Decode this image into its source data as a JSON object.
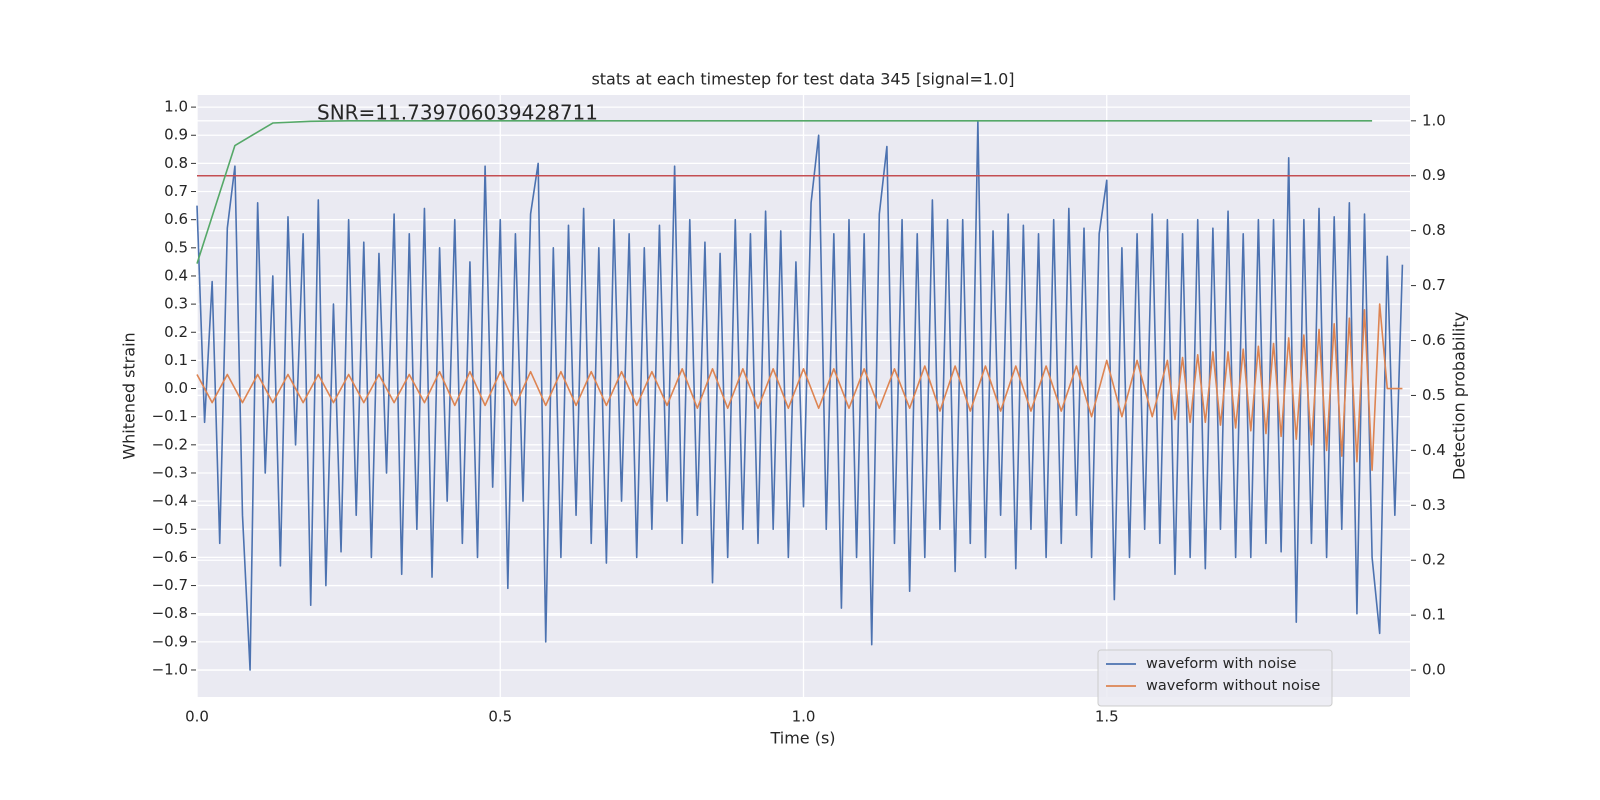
{
  "chart_data": {
    "type": "line",
    "title": "stats at each timestep for test data 345 [signal=1.0]",
    "xlabel": "Time (s)",
    "ylabel": "Whitened strain",
    "y2label": "Detection probability",
    "annotation": "SNR=11.739706039428711",
    "grid": true,
    "background": "#eaeaf2",
    "legend": "lower right",
    "xlim": [
      0,
      2.0
    ],
    "xticks": [
      {
        "value": 0,
        "label": "0.0"
      },
      0.5,
      {
        "value": 1,
        "label": "1.0"
      },
      1.5
    ],
    "ylim": [
      -1.096,
      1.043
    ],
    "yticks": [
      {
        "value": 1,
        "label": "1.0"
      },
      0.9,
      0.8,
      0.7,
      0.6,
      0.5,
      0.4,
      0.3,
      0.2,
      0.1,
      {
        "value": 0,
        "label": "0.0"
      },
      {
        "value": -0.1,
        "label": "−0.1"
      },
      {
        "value": -0.2,
        "label": "−0.2"
      },
      {
        "value": -0.3,
        "label": "−0.3"
      },
      {
        "value": -0.4,
        "label": "−0.4"
      },
      {
        "value": -0.5,
        "label": "−0.5"
      },
      {
        "value": -0.6,
        "label": "−0.6"
      },
      {
        "value": -0.7,
        "label": "−0.7"
      },
      {
        "value": -0.8,
        "label": "−0.8"
      },
      {
        "value": -0.9,
        "label": "−0.9"
      },
      {
        "value": -1,
        "label": "−1.0"
      }
    ],
    "y2lim": [
      -0.049,
      1.047
    ],
    "y2ticks": [
      {
        "value": 0,
        "label": "0.0"
      },
      0.1,
      0.2,
      0.3,
      0.4,
      0.5,
      0.6,
      0.7,
      0.8,
      0.9,
      {
        "value": 1,
        "label": "1.0"
      }
    ],
    "hlines": [
      {
        "value": 0.9,
        "axis": "y2",
        "color": "#c44e52"
      }
    ],
    "series": [
      {
        "name": "waveform with noise",
        "color": "#4c72b0",
        "x": [
          0,
          0.0125,
          0.025,
          0.0375,
          0.05,
          0.0625,
          0.075,
          0.0875,
          0.1,
          0.1125,
          0.125,
          0.1375,
          0.15,
          0.1625,
          0.175,
          0.1875,
          0.2,
          0.2125,
          0.225,
          0.2375,
          0.25,
          0.2625,
          0.275,
          0.2875,
          0.3,
          0.3125,
          0.325,
          0.3375,
          0.35,
          0.3625,
          0.375,
          0.3875,
          0.4,
          0.4125,
          0.425,
          0.4375,
          0.45,
          0.4625,
          0.475,
          0.4875,
          0.5,
          0.5125,
          0.525,
          0.5375,
          0.55,
          0.5625,
          0.575,
          0.5875,
          0.6,
          0.6125,
          0.625,
          0.6375,
          0.65,
          0.6625,
          0.675,
          0.6875,
          0.7,
          0.7125,
          0.725,
          0.7375,
          0.75,
          0.7625,
          0.775,
          0.7875,
          0.8,
          0.8125,
          0.825,
          0.8375,
          0.85,
          0.8625,
          0.875,
          0.8875,
          0.9,
          0.9125,
          0.925,
          0.9375,
          0.95,
          0.9625,
          0.975,
          0.9875,
          1,
          1.0125,
          1.025,
          1.0375,
          1.05,
          1.0625,
          1.075,
          1.0875,
          1.1,
          1.1125,
          1.125,
          1.1375,
          1.15,
          1.1625,
          1.175,
          1.1875,
          1.2,
          1.2125,
          1.225,
          1.2375,
          1.25,
          1.2625,
          1.275,
          1.2875,
          1.3,
          1.3125,
          1.325,
          1.3375,
          1.35,
          1.3625,
          1.375,
          1.3875,
          1.4,
          1.4125,
          1.425,
          1.4375,
          1.45,
          1.4625,
          1.475,
          1.4875,
          1.5,
          1.5125,
          1.525,
          1.5375,
          1.55,
          1.5625,
          1.575,
          1.5875,
          1.6,
          1.6125,
          1.625,
          1.6375,
          1.65,
          1.6625,
          1.675,
          1.6875,
          1.7,
          1.7125,
          1.725,
          1.7375,
          1.75,
          1.7625,
          1.775,
          1.7875,
          1.8,
          1.8125,
          1.825,
          1.8375,
          1.85,
          1.8625,
          1.875,
          1.8875,
          1.9,
          1.9125,
          1.925,
          1.9375,
          1.95,
          1.9625,
          1.975,
          1.9875
        ],
        "values": [
          0.65,
          -0.12,
          0.38,
          -0.55,
          0.57,
          0.79,
          -0.45,
          -1.0,
          0.66,
          -0.3,
          0.4,
          -0.63,
          0.61,
          -0.2,
          0.55,
          -0.77,
          0.67,
          -0.7,
          0.3,
          -0.58,
          0.6,
          -0.45,
          0.52,
          -0.6,
          0.48,
          -0.3,
          0.62,
          -0.66,
          0.55,
          -0.5,
          0.64,
          -0.67,
          0.5,
          -0.4,
          0.6,
          -0.55,
          0.45,
          -0.6,
          0.79,
          -0.35,
          0.6,
          -0.71,
          0.55,
          -0.4,
          0.62,
          0.8,
          -0.9,
          0.5,
          -0.6,
          0.58,
          -0.45,
          0.64,
          -0.55,
          0.5,
          -0.62,
          0.6,
          -0.4,
          0.55,
          -0.6,
          0.5,
          -0.5,
          0.58,
          -0.4,
          0.79,
          -0.55,
          0.6,
          -0.45,
          0.52,
          -0.69,
          0.48,
          -0.6,
          0.6,
          -0.5,
          0.55,
          -0.55,
          0.63,
          -0.5,
          0.56,
          -0.6,
          0.45,
          -0.42,
          0.66,
          0.9,
          -0.5,
          0.55,
          -0.78,
          0.6,
          -0.6,
          0.55,
          -0.91,
          0.62,
          0.86,
          -0.55,
          0.6,
          -0.72,
          0.55,
          -0.6,
          0.67,
          -0.5,
          0.6,
          -0.65,
          0.6,
          -0.55,
          0.95,
          -0.6,
          0.56,
          -0.45,
          0.62,
          -0.64,
          0.58,
          -0.5,
          0.55,
          -0.6,
          0.6,
          -0.55,
          0.64,
          -0.45,
          0.57,
          -0.6,
          0.55,
          0.74,
          -0.75,
          0.5,
          -0.6,
          0.55,
          -0.5,
          0.62,
          -0.55,
          0.6,
          -0.66,
          0.55,
          -0.6,
          0.6,
          -0.64,
          0.57,
          -0.5,
          0.63,
          -0.6,
          0.55,
          -0.6,
          0.6,
          -0.55,
          0.6,
          -0.58,
          0.82,
          -0.83,
          0.6,
          -0.55,
          0.64,
          -0.6,
          0.61,
          -0.5,
          0.66,
          -0.8,
          0.62,
          -0.6,
          -0.87,
          0.47,
          -0.45,
          0.44
        ]
      },
      {
        "name": "waveform without noise",
        "color": "#dd8452",
        "x": [
          0,
          0.025,
          0.05,
          0.075,
          0.1,
          0.125,
          0.15,
          0.175,
          0.2,
          0.225,
          0.25,
          0.275,
          0.3,
          0.325,
          0.35,
          0.375,
          0.4,
          0.425,
          0.45,
          0.475,
          0.5,
          0.525,
          0.55,
          0.575,
          0.6,
          0.625,
          0.65,
          0.675,
          0.7,
          0.725,
          0.75,
          0.775,
          0.8,
          0.825,
          0.85,
          0.875,
          0.9,
          0.925,
          0.95,
          0.975,
          1,
          1.025,
          1.05,
          1.075,
          1.1,
          1.125,
          1.15,
          1.175,
          1.2,
          1.225,
          1.25,
          1.275,
          1.3,
          1.325,
          1.35,
          1.375,
          1.4,
          1.425,
          1.45,
          1.475,
          1.5,
          1.525,
          1.55,
          1.575,
          1.6,
          1.6125,
          1.625,
          1.6375,
          1.65,
          1.6625,
          1.675,
          1.6875,
          1.7,
          1.7125,
          1.725,
          1.7375,
          1.75,
          1.7625,
          1.775,
          1.7875,
          1.8,
          1.8125,
          1.825,
          1.8375,
          1.85,
          1.8625,
          1.875,
          1.8875,
          1.9,
          1.9125,
          1.925,
          1.9375,
          1.95,
          1.9625,
          1.9875
        ],
        "values": [
          0.05,
          -0.05,
          0.05,
          -0.05,
          0.05,
          -0.05,
          0.05,
          -0.05,
          0.05,
          -0.05,
          0.05,
          -0.05,
          0.05,
          -0.05,
          0.05,
          -0.05,
          0.06,
          -0.06,
          0.06,
          -0.06,
          0.06,
          -0.06,
          0.06,
          -0.06,
          0.06,
          -0.06,
          0.06,
          -0.06,
          0.06,
          -0.06,
          0.06,
          -0.06,
          0.07,
          -0.07,
          0.07,
          -0.07,
          0.07,
          -0.07,
          0.07,
          -0.07,
          0.07,
          -0.07,
          0.07,
          -0.07,
          0.07,
          -0.07,
          0.07,
          -0.07,
          0.08,
          -0.08,
          0.08,
          -0.08,
          0.08,
          -0.08,
          0.08,
          -0.08,
          0.08,
          -0.08,
          0.08,
          -0.1,
          0.1,
          -0.1,
          0.1,
          -0.1,
          0.1,
          -0.11,
          0.11,
          -0.12,
          0.12,
          -0.12,
          0.13,
          -0.13,
          0.13,
          -0.14,
          0.14,
          -0.15,
          0.15,
          -0.16,
          0.16,
          -0.17,
          0.18,
          -0.18,
          0.19,
          -0.2,
          0.21,
          -0.22,
          0.23,
          -0.24,
          0.25,
          -0.26,
          0.28,
          -0.29,
          0.3,
          0.0,
          0.0
        ]
      },
      {
        "color": "#55a868",
        "axis": "y2",
        "x": [
          0,
          0.0625,
          0.125,
          0.1875,
          0.25,
          0.3125,
          0.375,
          0.4375,
          0.5,
          0.5625,
          0.625,
          0.6875,
          0.75,
          0.8125,
          0.875,
          0.9375,
          1,
          1.0625,
          1.125,
          1.1875,
          1.25,
          1.3125,
          1.375,
          1.4375,
          1.5,
          1.5625,
          1.625,
          1.6875,
          1.75,
          1.8125,
          1.875,
          1.9375
        ],
        "values": [
          0.74,
          0.955,
          0.996,
          0.999,
          1.0,
          1.0,
          1.0,
          1.0,
          1.0,
          1.0,
          1.0,
          1.0,
          1.0,
          1.0,
          1.0,
          1.0,
          1.0,
          1.0,
          1.0,
          1.0,
          1.0,
          1.0,
          1.0,
          1.0,
          1.0,
          1.0,
          1.0,
          1.0,
          1.0,
          1.0,
          1.0,
          1.0
        ]
      }
    ]
  }
}
